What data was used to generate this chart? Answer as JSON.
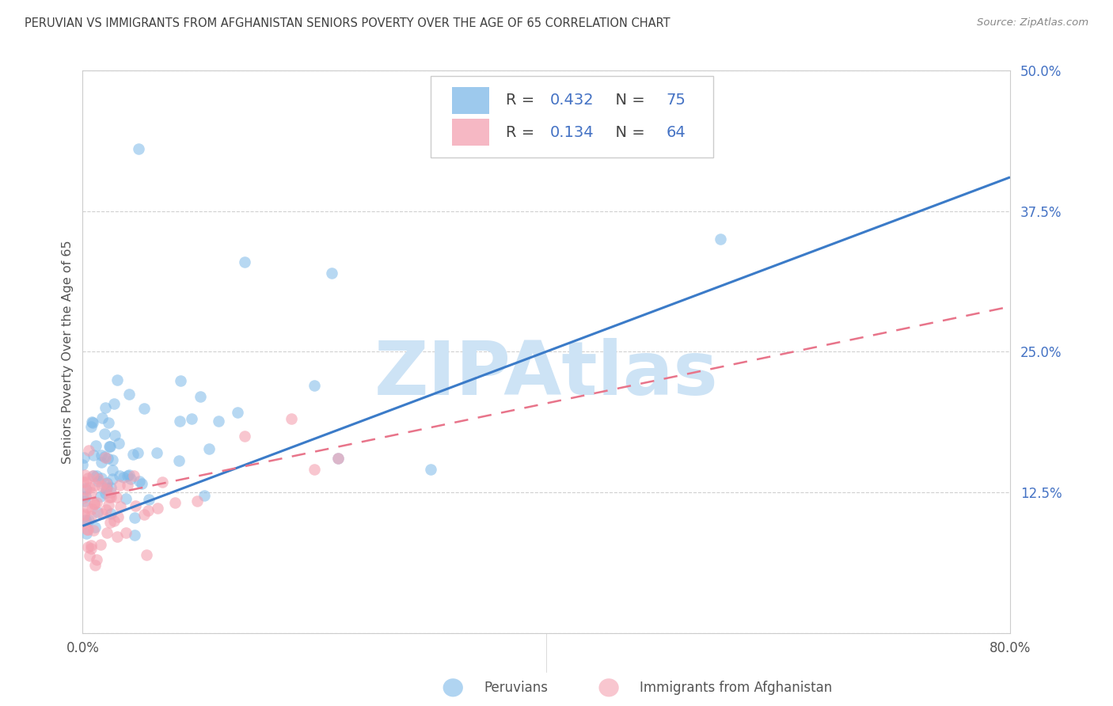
{
  "title": "PERUVIAN VS IMMIGRANTS FROM AFGHANISTAN SENIORS POVERTY OVER THE AGE OF 65 CORRELATION CHART",
  "source": "Source: ZipAtlas.com",
  "ylabel": "Seniors Poverty Over the Age of 65",
  "xlim": [
    0.0,
    0.8
  ],
  "ylim": [
    0.0,
    0.5
  ],
  "xtick_positions": [
    0.0,
    0.1,
    0.2,
    0.3,
    0.4,
    0.5,
    0.6,
    0.7,
    0.8
  ],
  "xtick_labels": [
    "0.0%",
    "",
    "",
    "",
    "",
    "",
    "",
    "",
    "80.0%"
  ],
  "ytick_positions": [
    0.0,
    0.125,
    0.25,
    0.375,
    0.5
  ],
  "ytick_labels": [
    "",
    "12.5%",
    "25.0%",
    "37.5%",
    "50.0%"
  ],
  "blue_R": "0.432",
  "blue_N": "75",
  "pink_R": "0.134",
  "pink_N": "64",
  "blue_scatter_color": "#7cb8e8",
  "pink_scatter_color": "#f4a0b0",
  "blue_line_color": "#3b7bc8",
  "pink_line_color": "#e8748a",
  "tick_color": "#4472c4",
  "legend_text_color": "#4472c4",
  "title_color": "#404040",
  "source_color": "#888888",
  "ylabel_color": "#555555",
  "grid_color": "#d0d0d0",
  "watermark": "ZIPAtlas",
  "watermark_color": "#cde3f5",
  "legend_label_blue": "Peruvians",
  "legend_label_pink": "Immigrants from Afghanistan",
  "blue_line_x": [
    0.0,
    0.8
  ],
  "blue_line_y": [
    0.095,
    0.405
  ],
  "pink_line_x": [
    0.0,
    0.8
  ],
  "pink_line_y": [
    0.118,
    0.29
  ],
  "background_color": "#ffffff"
}
